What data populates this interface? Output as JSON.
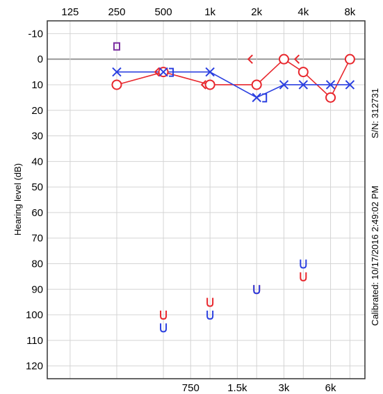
{
  "chart_data": {
    "type": "scatter",
    "title": "",
    "ylabel": "Hearing level (dB)",
    "x_scale": "log2",
    "x_top_ticks": [
      {
        "freq": 125,
        "label": "125"
      },
      {
        "freq": 250,
        "label": "250"
      },
      {
        "freq": 500,
        "label": "500"
      },
      {
        "freq": 1000,
        "label": "1k"
      },
      {
        "freq": 2000,
        "label": "2k"
      },
      {
        "freq": 4000,
        "label": "4k"
      },
      {
        "freq": 8000,
        "label": "8k"
      }
    ],
    "x_bottom_ticks": [
      {
        "freq": 750,
        "label": "750"
      },
      {
        "freq": 1500,
        "label": "1.5k"
      },
      {
        "freq": 3000,
        "label": "3k"
      },
      {
        "freq": 6000,
        "label": "6k"
      }
    ],
    "y_ticks": [
      -10,
      0,
      10,
      20,
      30,
      40,
      50,
      60,
      70,
      80,
      90,
      100,
      110,
      120
    ],
    "ylim": [
      -15,
      125
    ],
    "xlim_freq": [
      89,
      10000
    ],
    "right_labels": {
      "serial": "S/N: 312731",
      "calibrated": "Calibrated: 10/17/2016 2:49:02 PM"
    },
    "colors": {
      "right_ear": "#e8262c",
      "left_ear": "#2a3fe0",
      "mixed": "#7b2fa0",
      "grid": "#d4d4d4",
      "zero_line": "#9a9a9a"
    },
    "series": [
      {
        "symbol": "circle",
        "color": "red",
        "connected": true,
        "points": [
          [
            250,
            10
          ],
          [
            500,
            5
          ],
          [
            1000,
            10
          ],
          [
            2000,
            10
          ],
          [
            3000,
            0
          ],
          [
            4000,
            5
          ],
          [
            6000,
            15
          ],
          [
            8000,
            0
          ]
        ]
      },
      {
        "symbol": "cross",
        "color": "blue",
        "connected": true,
        "points": [
          [
            250,
            5
          ],
          [
            500,
            5
          ],
          [
            1000,
            5
          ],
          [
            2000,
            15
          ],
          [
            3000,
            10
          ],
          [
            4000,
            10
          ],
          [
            6000,
            10
          ],
          [
            8000,
            10
          ]
        ]
      },
      {
        "symbol": "bracket-left",
        "color": "red",
        "connected": false,
        "points": [
          [
            500,
            5
          ],
          [
            1000,
            10
          ],
          [
            2000,
            0
          ],
          [
            4000,
            0
          ]
        ]
      },
      {
        "symbol": "bracket-right",
        "color": "blue",
        "connected": false,
        "points": [
          [
            500,
            5
          ],
          [
            2000,
            15
          ]
        ]
      },
      {
        "symbol": "u",
        "color": "red",
        "connected": false,
        "points": [
          [
            500,
            100
          ],
          [
            1000,
            95
          ],
          [
            2000,
            90
          ],
          [
            4000,
            85
          ]
        ]
      },
      {
        "symbol": "u",
        "color": "blue",
        "connected": false,
        "points": [
          [
            500,
            105
          ],
          [
            1000,
            100
          ],
          [
            2000,
            90
          ],
          [
            4000,
            80
          ]
        ]
      },
      {
        "symbol": "square",
        "color": "mixed",
        "connected": false,
        "points": [
          [
            250,
            -5
          ]
        ]
      }
    ]
  }
}
